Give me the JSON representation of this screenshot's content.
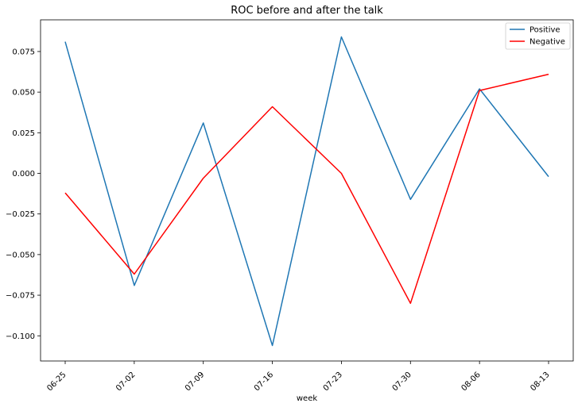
{
  "chart_data": {
    "type": "line",
    "title": "ROC before and after the talk",
    "xlabel": "week",
    "ylabel": "",
    "categories": [
      "06-25",
      "07-02",
      "07-09",
      "07-16",
      "07-23",
      "07-30",
      "08-06",
      "08-13"
    ],
    "yticks": [
      "0.075",
      "0.050",
      "0.025",
      "0.000",
      "−0.025",
      "−0.050",
      "−0.075",
      "−0.100"
    ],
    "ytick_values": [
      0.075,
      0.05,
      0.025,
      0.0,
      -0.025,
      -0.05,
      -0.075,
      -0.1
    ],
    "ylim": [
      -0.1155,
      0.0945
    ],
    "grid": false,
    "legend_position": "top-right",
    "series": [
      {
        "name": "Positive",
        "color": "#1f77b4",
        "values": [
          0.081,
          -0.069,
          0.031,
          -0.106,
          0.084,
          -0.016,
          0.052,
          -0.002
        ]
      },
      {
        "name": "Negative",
        "color": "#ff0000",
        "values": [
          -0.012,
          -0.062,
          -0.003,
          0.041,
          0.0,
          -0.08,
          0.051,
          0.061
        ]
      }
    ]
  }
}
